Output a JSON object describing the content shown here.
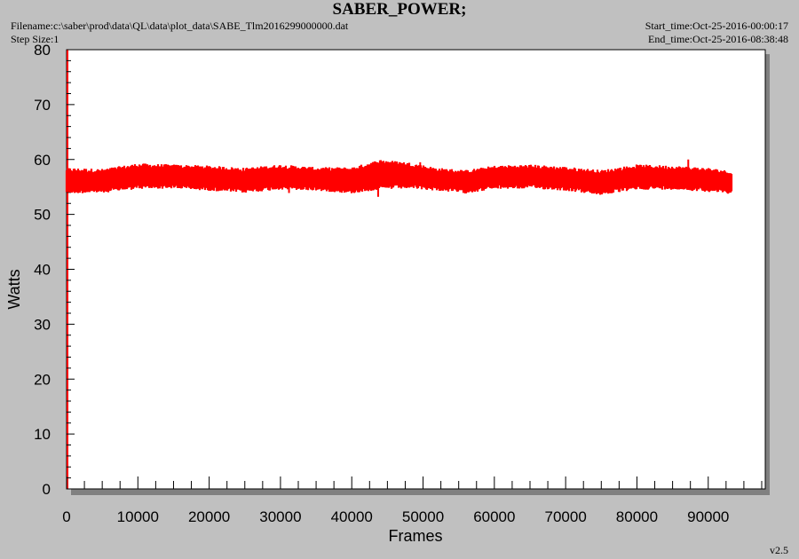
{
  "header": {
    "title": "SABER_POWER;",
    "filename": "Filename:c:\\saber\\prod\\data\\QL\\data\\plot_data\\SABE_Tlm2016299000000.dat",
    "step_size": "Step Size:1",
    "start_time": "Start_time:Oct-25-2016-00:00:17",
    "end_time": "End_time:Oct-25-2016-08:38:48",
    "version": "v2.5"
  },
  "colors": {
    "background": "#c0c0c0",
    "plot_area": "#ffffff",
    "series": "#ff0000",
    "axis": "#000000"
  },
  "chart_data": {
    "type": "line",
    "title": "SABER_POWER;",
    "xlabel": "Frames",
    "ylabel": "Watts",
    "xlim": [
      0,
      98000
    ],
    "ylim": [
      0,
      80
    ],
    "x_ticks": [
      0,
      10000,
      20000,
      30000,
      40000,
      50000,
      60000,
      70000,
      80000,
      90000
    ],
    "y_ticks": [
      0,
      10,
      20,
      30,
      40,
      50,
      60,
      70,
      80
    ],
    "grid": false,
    "series": [
      {
        "color": "#ff0000",
        "x_range": [
          0,
          93300
        ],
        "band": [
          {
            "x": 0,
            "low": 54.5,
            "high": 57.8
          },
          {
            "x": 5000,
            "low": 54.6,
            "high": 57.6
          },
          {
            "x": 10000,
            "low": 55.3,
            "high": 58.6
          },
          {
            "x": 15000,
            "low": 55.4,
            "high": 58.4
          },
          {
            "x": 20000,
            "low": 55.0,
            "high": 58.2
          },
          {
            "x": 25000,
            "low": 54.6,
            "high": 57.8
          },
          {
            "x": 30000,
            "low": 55.2,
            "high": 58.4
          },
          {
            "x": 35000,
            "low": 55.0,
            "high": 57.9
          },
          {
            "x": 40000,
            "low": 54.5,
            "high": 57.9
          },
          {
            "x": 44000,
            "low": 55.2,
            "high": 59.3
          },
          {
            "x": 48000,
            "low": 55.4,
            "high": 58.8
          },
          {
            "x": 52000,
            "low": 55.0,
            "high": 57.8
          },
          {
            "x": 56000,
            "low": 54.5,
            "high": 57.4
          },
          {
            "x": 60000,
            "low": 55.3,
            "high": 58.2
          },
          {
            "x": 65000,
            "low": 55.4,
            "high": 58.4
          },
          {
            "x": 70000,
            "low": 55.0,
            "high": 58.0
          },
          {
            "x": 75000,
            "low": 54.2,
            "high": 57.4
          },
          {
            "x": 80000,
            "low": 55.2,
            "high": 58.4
          },
          {
            "x": 85000,
            "low": 55.2,
            "high": 58.2
          },
          {
            "x": 90000,
            "low": 54.8,
            "high": 57.8
          },
          {
            "x": 93300,
            "low": 54.4,
            "high": 57.2
          }
        ],
        "spikes": [
          {
            "x": 31200,
            "low": 53.9
          },
          {
            "x": 43700,
            "low": 53.2
          },
          {
            "x": 44000,
            "high": 59.6
          },
          {
            "x": 49600,
            "high": 59.5
          },
          {
            "x": 73700,
            "low": 53.8
          },
          {
            "x": 87200,
            "high": 60.0
          }
        ]
      }
    ]
  }
}
